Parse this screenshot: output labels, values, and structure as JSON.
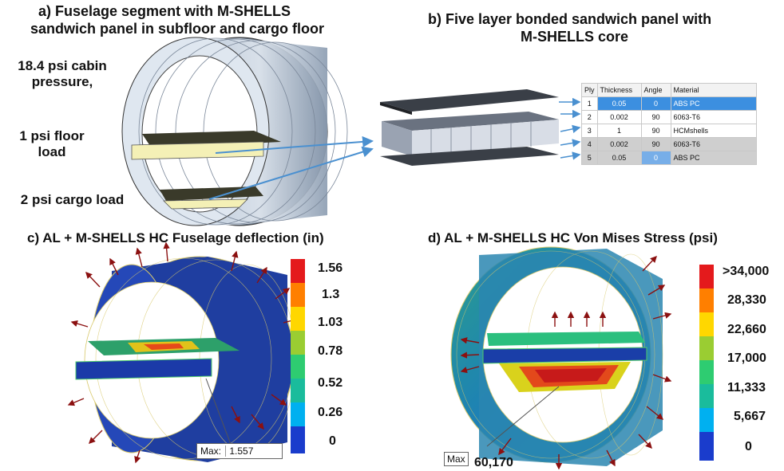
{
  "panel_a": {
    "title_line1": "a) Fuselage segment with M-SHELLS",
    "title_line2": "sandwich panel in subfloor and cargo floor",
    "label_cabin_line1": "18.4 psi cabin",
    "label_cabin_line2": "pressure,",
    "label_floor_line1": "1 psi floor",
    "label_floor_line2": "load",
    "label_cargo": "2 psi cargo load"
  },
  "panel_b": {
    "title_line1": "b) Five layer bonded sandwich panel with",
    "title_line2": "M-SHELLS core",
    "table_headers": [
      "Ply",
      "Thickness",
      "Angle",
      "Material"
    ],
    "table_rows": [
      [
        "1",
        "0.05",
        "0",
        "ABS PC"
      ],
      [
        "2",
        "0.002",
        "90",
        "6063-T6"
      ],
      [
        "3",
        "1",
        "90",
        "HCMshells"
      ],
      [
        "4",
        "0.002",
        "90",
        "6063-T6"
      ],
      [
        "5",
        "0.05",
        "0",
        "ABS PC"
      ]
    ]
  },
  "panel_c": {
    "title": "c) AL + M-SHELLS HC Fuselage deflection (in)",
    "legend_values": [
      "1.56",
      "1.3",
      "1.03",
      "0.78",
      "0.52",
      "0.26",
      "0"
    ],
    "max_label": "Max:",
    "max_value": "1.557"
  },
  "panel_d": {
    "title": "d) AL + M-SHELLS HC Von Mises Stress (psi)",
    "legend_values": [
      ">34,000",
      "28,330",
      "22,660",
      "17,000",
      "11,333",
      "5,667",
      "0"
    ],
    "max_label": "Max",
    "max_value": "60,170"
  },
  "colors": {
    "fuselage_blue": "#1f3ea0",
    "arrow_red": "#8b1010",
    "pointer_blue": "#4a90d0",
    "scale": [
      "#e41a1c",
      "#ff7f00",
      "#ffd700",
      "#9acd32",
      "#2ecc71",
      "#1abc9c",
      "#00b0f0",
      "#1e6fd9",
      "#1a3ccc"
    ]
  }
}
